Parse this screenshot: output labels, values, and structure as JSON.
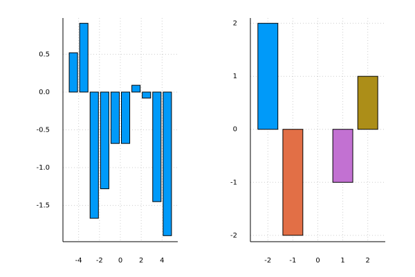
{
  "chart_data": [
    {
      "type": "bar",
      "x": [
        -4.5,
        -3.5,
        -2.5,
        -1.5,
        -0.5,
        0.5,
        1.5,
        2.5,
        3.5,
        4.5
      ],
      "values": [
        0.52,
        0.91,
        -1.67,
        -1.28,
        -0.68,
        -0.68,
        0.09,
        -0.08,
        -1.45,
        -1.9
      ],
      "color": "#009af9",
      "xlim": [
        -5.5,
        5.5
      ],
      "ylim": [
        -1.98,
        0.98
      ],
      "xticks": [
        -4,
        -2,
        0,
        2,
        4
      ],
      "yticks": [
        0.5,
        {
          "value": 0,
          "label": "0.0"
        },
        -0.5,
        {
          "value": -1,
          "label": "-1.0"
        },
        -1.5
      ],
      "grid": true
    },
    {
      "type": "bar",
      "x": [
        -2,
        -1,
        0,
        1,
        2
      ],
      "values": [
        2,
        -2,
        0,
        -1,
        1
      ],
      "colors": [
        "#009af9",
        "#e26f46",
        "#3ea44e",
        "#c271d2",
        "#ac8e18"
      ],
      "xlim": [
        -2.7,
        2.7
      ],
      "ylim": [
        -2.12,
        2.1
      ],
      "xticks": [
        -2,
        -1,
        0,
        1,
        2
      ],
      "yticks": [
        2,
        1,
        0,
        -1,
        -2
      ],
      "grid": true
    }
  ]
}
